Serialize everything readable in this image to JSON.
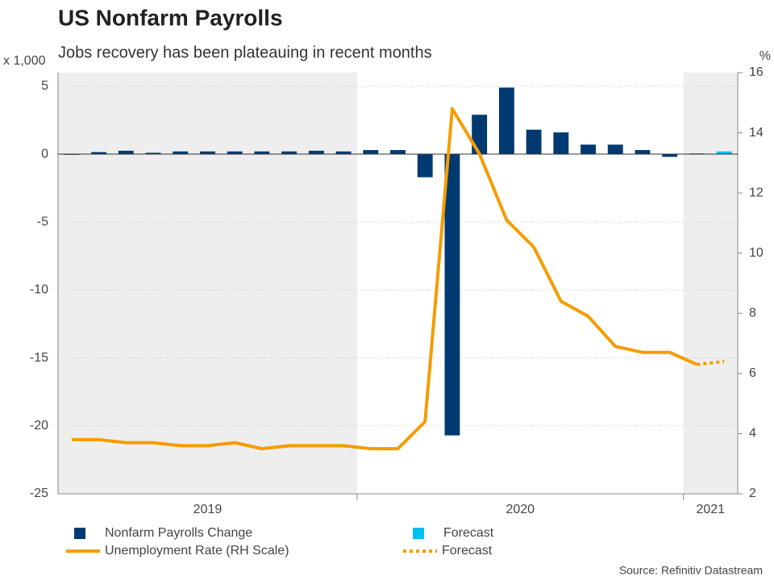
{
  "chart_data": {
    "type": "bar-line",
    "title": "US Nonfarm Payrolls",
    "subtitle": "Jobs recovery has been plateauing in recent months",
    "y_label": "x 1,000",
    "y2_label": "%",
    "source": "Source: Refinitiv Datastream",
    "categories": [
      "2019",
      "2019",
      "2019",
      "2019",
      "2019",
      "2019",
      "2019",
      "2019",
      "2019",
      "2019",
      "2019",
      "2020",
      "2020",
      "2020",
      "2020",
      "2020",
      "2020",
      "2020",
      "2020",
      "2020",
      "2020",
      "2020",
      "2020",
      "2021",
      "2021"
    ],
    "series": [
      {
        "name": "Nonfarm Payrolls Change",
        "kind": "bar",
        "color": "#003a70",
        "values": [
          -0.05,
          0.15,
          0.25,
          0.1,
          0.2,
          0.2,
          0.2,
          0.2,
          0.2,
          0.25,
          0.2,
          0.3,
          0.3,
          -1.7,
          -20.7,
          2.9,
          4.9,
          1.8,
          1.6,
          0.7,
          0.7,
          0.3,
          -0.2,
          0.05,
          null
        ]
      },
      {
        "name": "Forecast",
        "kind": "bar",
        "color": "#00c0f0",
        "values": [
          null,
          null,
          null,
          null,
          null,
          null,
          null,
          null,
          null,
          null,
          null,
          null,
          null,
          null,
          null,
          null,
          null,
          null,
          null,
          null,
          null,
          null,
          null,
          null,
          0.2
        ]
      },
      {
        "name": "Unemployment Rate (RH Scale)",
        "kind": "line",
        "axis": "y2",
        "color": "#f59c00",
        "dash": false,
        "values": [
          3.8,
          3.8,
          3.7,
          3.7,
          3.6,
          3.6,
          3.7,
          3.5,
          3.6,
          3.6,
          3.6,
          3.5,
          3.5,
          4.4,
          14.8,
          13.3,
          11.1,
          10.2,
          8.4,
          7.9,
          6.9,
          6.7,
          6.7,
          6.3,
          null
        ]
      },
      {
        "name": "Forecast",
        "kind": "line",
        "axis": "y2",
        "color": "#f59c00",
        "dash": true,
        "values": [
          null,
          null,
          null,
          null,
          null,
          null,
          null,
          null,
          null,
          null,
          null,
          null,
          null,
          null,
          null,
          null,
          null,
          null,
          null,
          null,
          null,
          null,
          null,
          6.3,
          6.4
        ]
      }
    ],
    "ylim": [
      -25,
      6
    ],
    "yticks": [
      -25,
      -20,
      -15,
      -10,
      -5,
      0,
      5
    ],
    "y2lim": [
      2,
      16
    ],
    "y2ticks": [
      2,
      4,
      6,
      8,
      10,
      12,
      14,
      16
    ],
    "grid": true
  }
}
